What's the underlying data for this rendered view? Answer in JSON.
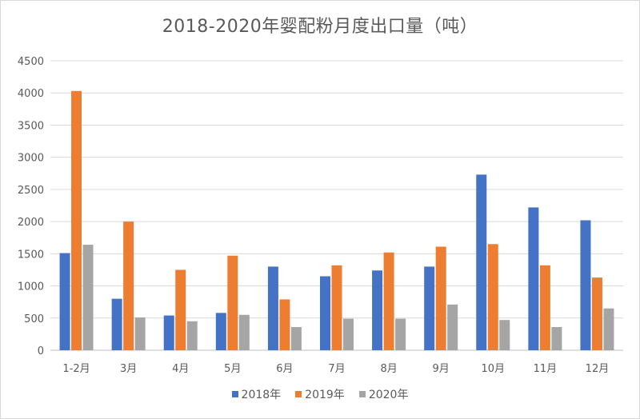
{
  "chart_data": {
    "type": "bar",
    "title": "2018-2020年婴配粉月度出口量（吨）",
    "categories": [
      "1-2月",
      "3月",
      "4月",
      "5月",
      "6月",
      "7月",
      "8月",
      "9月",
      "10月",
      "11月",
      "12月"
    ],
    "series": [
      {
        "name": "2018年",
        "color": "#4472c4",
        "values": [
          1510,
          800,
          540,
          580,
          1300,
          1150,
          1240,
          1300,
          2730,
          2220,
          2020
        ]
      },
      {
        "name": "2019年",
        "color": "#ed7d31",
        "values": [
          4030,
          2000,
          1250,
          1470,
          790,
          1320,
          1520,
          1610,
          1650,
          1320,
          1130
        ]
      },
      {
        "name": "2020年",
        "color": "#a5a5a5",
        "values": [
          1640,
          510,
          450,
          550,
          360,
          490,
          490,
          710,
          470,
          360,
          650
        ]
      }
    ],
    "ylim": [
      0,
      4500
    ],
    "yticks": [
      0,
      500,
      1000,
      1500,
      2000,
      2500,
      3000,
      3500,
      4000,
      4500
    ],
    "grid": true,
    "legend": "bottom",
    "xlabel": "",
    "ylabel": ""
  }
}
